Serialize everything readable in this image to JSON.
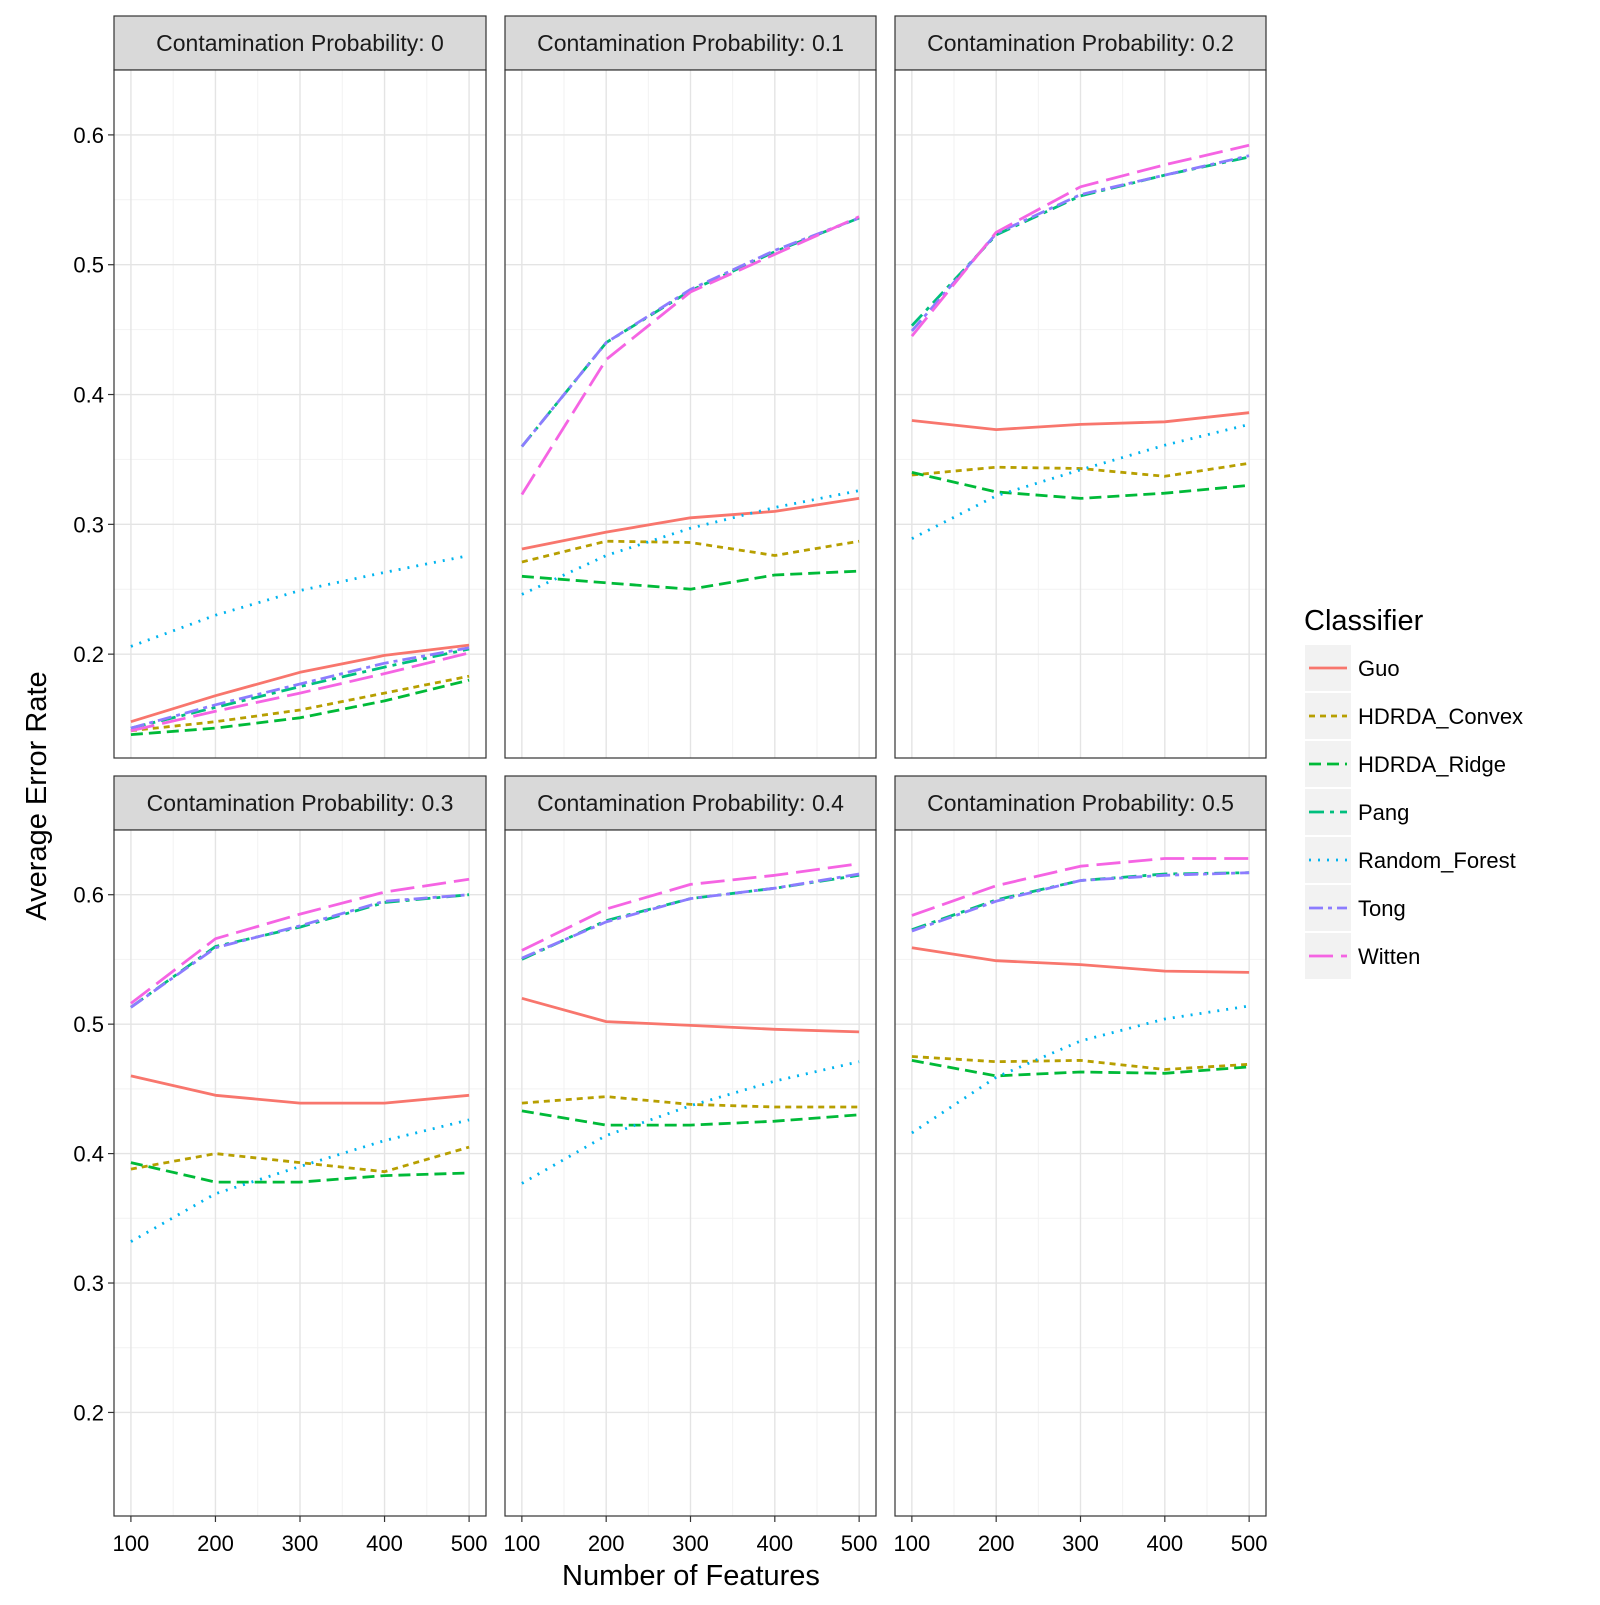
{
  "colors": {
    "Guo": "#f8766d",
    "HDRDA_Convex": "#b79f00",
    "HDRDA_Ridge": "#00ba38",
    "Pang": "#00bf7d",
    "Random_Forest": "#00b4ef",
    "Tong": "#8c7cff",
    "Witten": "#f564e3"
  },
  "chart_data": {
    "type": "line",
    "xlabel": "Number of Features",
    "ylabel": "Average Error Rate",
    "x": [
      100,
      200,
      300,
      400,
      500
    ],
    "xlim": [
      80,
      520
    ],
    "ylim": [
      0.12,
      0.65
    ],
    "y_ticks": [
      0.2,
      0.3,
      0.4,
      0.5,
      0.6
    ],
    "y_tick_labels": [
      "0.2",
      "0.3",
      "0.4",
      "0.5",
      "0.6"
    ],
    "x_ticks": [
      100,
      200,
      300,
      400,
      500
    ],
    "x_tick_labels": [
      "100",
      "200",
      "300",
      "400",
      "500"
    ],
    "grid": true,
    "legend": {
      "title": "Classifier",
      "position": "right",
      "entries": [
        "Guo",
        "HDRDA_Convex",
        "HDRDA_Ridge",
        "Pang",
        "Random_Forest",
        "Tong",
        "Witten"
      ]
    },
    "panels": [
      {
        "label": "Contamination Probability: 0",
        "series": [
          {
            "name": "Guo",
            "values": [
              0.148,
              0.168,
              0.186,
              0.199,
              0.207
            ]
          },
          {
            "name": "HDRDA_Convex",
            "values": [
              0.141,
              0.148,
              0.157,
              0.17,
              0.183
            ]
          },
          {
            "name": "HDRDA_Ridge",
            "values": [
              0.138,
              0.143,
              0.151,
              0.164,
              0.18
            ]
          },
          {
            "name": "Pang",
            "values": [
              0.143,
              0.159,
              0.175,
              0.19,
              0.204
            ]
          },
          {
            "name": "Random_Forest",
            "values": [
              0.206,
              0.23,
              0.249,
              0.263,
              0.276
            ]
          },
          {
            "name": "Tong",
            "values": [
              0.143,
              0.161,
              0.177,
              0.193,
              0.205
            ]
          },
          {
            "name": "Witten",
            "values": [
              0.141,
              0.156,
              0.17,
              0.185,
              0.201
            ]
          }
        ]
      },
      {
        "label": "Contamination Probability: 0.1",
        "series": [
          {
            "name": "Guo",
            "values": [
              0.281,
              0.294,
              0.305,
              0.31,
              0.32
            ]
          },
          {
            "name": "HDRDA_Convex",
            "values": [
              0.271,
              0.287,
              0.286,
              0.276,
              0.287
            ]
          },
          {
            "name": "HDRDA_Ridge",
            "values": [
              0.26,
              0.255,
              0.25,
              0.261,
              0.264
            ]
          },
          {
            "name": "Pang",
            "values": [
              0.36,
              0.44,
              0.48,
              0.51,
              0.536
            ]
          },
          {
            "name": "Random_Forest",
            "values": [
              0.246,
              0.276,
              0.297,
              0.313,
              0.326
            ]
          },
          {
            "name": "Tong",
            "values": [
              0.36,
              0.44,
              0.481,
              0.511,
              0.536
            ]
          },
          {
            "name": "Witten",
            "values": [
              0.323,
              0.427,
              0.479,
              0.508,
              0.537
            ]
          }
        ]
      },
      {
        "label": "Contamination Probability: 0.2",
        "series": [
          {
            "name": "Guo",
            "values": [
              0.38,
              0.373,
              0.377,
              0.379,
              0.386
            ]
          },
          {
            "name": "HDRDA_Convex",
            "values": [
              0.338,
              0.344,
              0.343,
              0.337,
              0.347
            ]
          },
          {
            "name": "HDRDA_Ridge",
            "values": [
              0.34,
              0.325,
              0.32,
              0.324,
              0.33
            ]
          },
          {
            "name": "Pang",
            "values": [
              0.453,
              0.523,
              0.553,
              0.569,
              0.583
            ]
          },
          {
            "name": "Random_Forest",
            "values": [
              0.289,
              0.322,
              0.342,
              0.361,
              0.377
            ]
          },
          {
            "name": "Tong",
            "values": [
              0.449,
              0.524,
              0.554,
              0.569,
              0.584
            ]
          },
          {
            "name": "Witten",
            "values": [
              0.445,
              0.525,
              0.56,
              0.577,
              0.592
            ]
          }
        ]
      },
      {
        "label": "Contamination Probability: 0.3",
        "series": [
          {
            "name": "Guo",
            "values": [
              0.46,
              0.445,
              0.439,
              0.439,
              0.445
            ]
          },
          {
            "name": "HDRDA_Convex",
            "values": [
              0.388,
              0.4,
              0.393,
              0.386,
              0.405
            ]
          },
          {
            "name": "HDRDA_Ridge",
            "values": [
              0.393,
              0.378,
              0.378,
              0.383,
              0.385
            ]
          },
          {
            "name": "Pang",
            "values": [
              0.513,
              0.56,
              0.575,
              0.594,
              0.6
            ]
          },
          {
            "name": "Random_Forest",
            "values": [
              0.332,
              0.369,
              0.39,
              0.41,
              0.426
            ]
          },
          {
            "name": "Tong",
            "values": [
              0.513,
              0.559,
              0.576,
              0.595,
              0.6
            ]
          },
          {
            "name": "Witten",
            "values": [
              0.516,
              0.566,
              0.585,
              0.602,
              0.612
            ]
          }
        ]
      },
      {
        "label": "Contamination Probability: 0.4",
        "series": [
          {
            "name": "Guo",
            "values": [
              0.52,
              0.502,
              0.499,
              0.496,
              0.494
            ]
          },
          {
            "name": "HDRDA_Convex",
            "values": [
              0.439,
              0.444,
              0.438,
              0.436,
              0.436
            ]
          },
          {
            "name": "HDRDA_Ridge",
            "values": [
              0.433,
              0.422,
              0.422,
              0.425,
              0.43
            ]
          },
          {
            "name": "Pang",
            "values": [
              0.55,
              0.58,
              0.597,
              0.605,
              0.615
            ]
          },
          {
            "name": "Random_Forest",
            "values": [
              0.377,
              0.414,
              0.437,
              0.456,
              0.471
            ]
          },
          {
            "name": "Tong",
            "values": [
              0.551,
              0.579,
              0.597,
              0.605,
              0.616
            ]
          },
          {
            "name": "Witten",
            "values": [
              0.557,
              0.589,
              0.608,
              0.615,
              0.624
            ]
          }
        ]
      },
      {
        "label": "Contamination Probability: 0.5",
        "series": [
          {
            "name": "Guo",
            "values": [
              0.559,
              0.549,
              0.546,
              0.541,
              0.54
            ]
          },
          {
            "name": "HDRDA_Convex",
            "values": [
              0.475,
              0.471,
              0.472,
              0.465,
              0.469
            ]
          },
          {
            "name": "HDRDA_Ridge",
            "values": [
              0.472,
              0.46,
              0.463,
              0.462,
              0.467
            ]
          },
          {
            "name": "Pang",
            "values": [
              0.573,
              0.596,
              0.611,
              0.616,
              0.617
            ]
          },
          {
            "name": "Random_Forest",
            "values": [
              0.416,
              0.459,
              0.487,
              0.504,
              0.514
            ]
          },
          {
            "name": "Tong",
            "values": [
              0.572,
              0.595,
              0.611,
              0.615,
              0.617
            ]
          },
          {
            "name": "Witten",
            "values": [
              0.584,
              0.607,
              0.622,
              0.628,
              0.628
            ]
          }
        ]
      }
    ]
  }
}
